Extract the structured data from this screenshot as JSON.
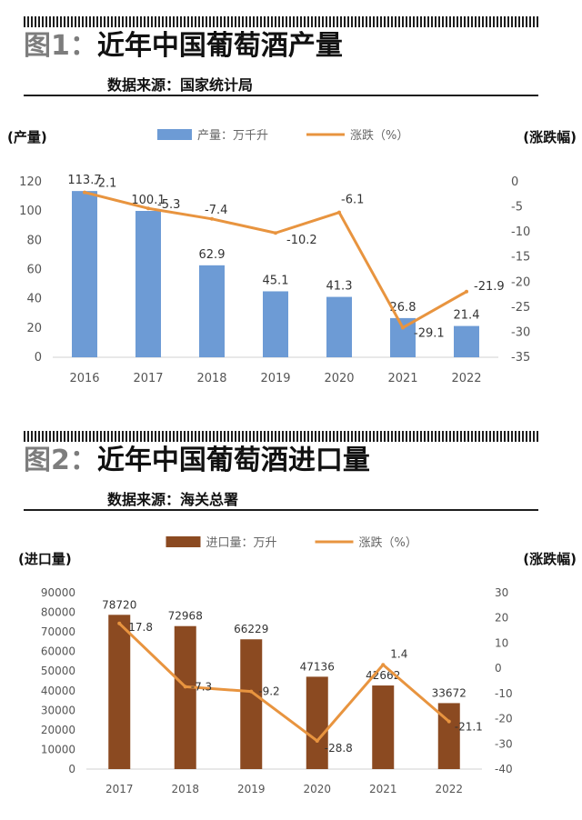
{
  "figures": [
    {
      "fig_label": "图1：",
      "title": "近年中国葡萄酒产量",
      "source": "数据来源：国家统计局"
    },
    {
      "fig_label": "图2：",
      "title": "近年中国葡萄酒进口量",
      "source": "数据来源：海关总署"
    }
  ],
  "chart_data": [
    {
      "type": "bar",
      "categories": [
        "2016",
        "2017",
        "2018",
        "2019",
        "2020",
        "2021",
        "2022"
      ],
      "series": [
        {
          "name": "产量：万千升",
          "kind": "bar",
          "axis": "left",
          "color": "#6d9bd5",
          "values": [
            113.7,
            100.1,
            62.9,
            45.1,
            41.3,
            26.8,
            21.4
          ],
          "labels": [
            "113.7",
            "100.1",
            "62.9",
            "45.1",
            "41.3",
            "26.8",
            "21.4"
          ]
        },
        {
          "name": "涨跌（%）",
          "kind": "line",
          "axis": "right",
          "color": "#e8943f",
          "values": [
            -2.1,
            -5.3,
            -7.4,
            -10.2,
            -6.1,
            -29.1,
            -21.9
          ],
          "labels": [
            "-2.1",
            "-5.3",
            "-7.4",
            "-10.2",
            "-6.1",
            "-29.1",
            "-21.9"
          ]
        }
      ],
      "ylabel": "(产量)",
      "y2label": "(涨跌幅)",
      "ylim": [
        0,
        120
      ],
      "yticks": [
        "0",
        "20",
        "40",
        "60",
        "80",
        "100",
        "120"
      ],
      "y2lim": [
        -35,
        0
      ],
      "y2ticks": [
        "-35",
        "-30",
        "-25",
        "-20",
        "-15",
        "-10",
        "-5",
        "0"
      ],
      "legend_position": "top-center",
      "grid": false
    },
    {
      "type": "bar",
      "categories": [
        "2017",
        "2018",
        "2019",
        "2020",
        "2021",
        "2022"
      ],
      "series": [
        {
          "name": "进口量：万升",
          "kind": "bar",
          "axis": "left",
          "color": "#8b4a21",
          "values": [
            78720,
            72968,
            66229,
            47136,
            42662,
            33672
          ],
          "labels": [
            "78720",
            "72968",
            "66229",
            "47136",
            "42662",
            "33672"
          ]
        },
        {
          "name": "涨跌（%）",
          "kind": "line",
          "axis": "right",
          "color": "#e8943f",
          "values": [
            17.8,
            -7.3,
            -9.2,
            -28.8,
            1.4,
            -21.1
          ],
          "labels": [
            "17.8",
            "-7.3",
            "-9.2",
            "-28.8",
            "1.4",
            "-21.1"
          ]
        }
      ],
      "ylabel": "(进口量)",
      "y2label": "(涨跌幅)",
      "ylim": [
        0,
        90000
      ],
      "yticks": [
        "0",
        "10000",
        "20000",
        "30000",
        "40000",
        "50000",
        "60000",
        "70000",
        "80000",
        "90000"
      ],
      "y2lim": [
        -40,
        30
      ],
      "y2ticks": [
        "-40",
        "-30",
        "-20",
        "-10",
        "0",
        "10",
        "20",
        "30"
      ],
      "legend_position": "top-center",
      "grid": false
    }
  ]
}
